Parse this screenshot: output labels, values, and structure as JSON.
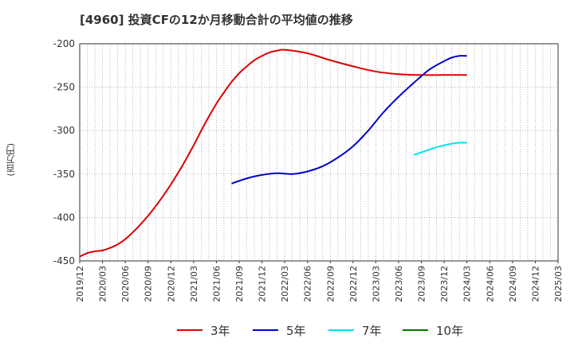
{
  "chart_data": {
    "type": "line",
    "title": "[4960]  投資CFの12か月移動合計の平均値の推移",
    "ylabel": "(百万円)",
    "xlabel": "",
    "x_ticks": [
      "2019/12",
      "2020/03",
      "2020/06",
      "2020/09",
      "2020/12",
      "2021/03",
      "2021/06",
      "2021/09",
      "2021/12",
      "2022/03",
      "2022/06",
      "2022/09",
      "2022/12",
      "2023/03",
      "2023/06",
      "2023/09",
      "2023/12",
      "2024/03",
      "2024/06",
      "2024/09",
      "2024/12",
      "2025/03"
    ],
    "y_ticks": [
      -200,
      -250,
      -300,
      -350,
      -400,
      -450
    ],
    "ylim": [
      -450,
      -200
    ],
    "grid": true,
    "legend_position": "bottom",
    "series": [
      {
        "name": "3年",
        "color": "#dd0000",
        "x": [
          "2019/12",
          "2020/01",
          "2020/02",
          "2020/03",
          "2020/04",
          "2020/05",
          "2020/06",
          "2020/07",
          "2020/08",
          "2020/09",
          "2020/10",
          "2020/11",
          "2020/12",
          "2021/01",
          "2021/02",
          "2021/03",
          "2021/04",
          "2021/05",
          "2021/06",
          "2021/07",
          "2021/08",
          "2021/09",
          "2021/10",
          "2021/11",
          "2021/12",
          "2022/01",
          "2022/02",
          "2022/03",
          "2022/06",
          "2022/09",
          "2022/12",
          "2023/03",
          "2023/06",
          "2023/09",
          "2023/12",
          "2024/03"
        ],
        "values": [
          -445,
          -441,
          -439,
          -438,
          -435,
          -431,
          -425,
          -417,
          -408,
          -398,
          -387,
          -375,
          -362,
          -348,
          -333,
          -317,
          -300,
          -284,
          -269,
          -256,
          -244,
          -234,
          -226,
          -219,
          -214,
          -210,
          -208,
          -207,
          -211,
          -219,
          -226,
          -232,
          -235,
          -236,
          -236,
          -236
        ]
      },
      {
        "name": "5年",
        "color": "#0000cc",
        "x": [
          "2021/08",
          "2021/10",
          "2021/12",
          "2022/02",
          "2022/04",
          "2022/06",
          "2022/08",
          "2022/10",
          "2022/12",
          "2023/02",
          "2023/04",
          "2023/06",
          "2023/08",
          "2023/10",
          "2023/12",
          "2024/01",
          "2024/02",
          "2024/03"
        ],
        "values": [
          -361,
          -355,
          -351,
          -349,
          -350,
          -347,
          -341,
          -331,
          -318,
          -300,
          -279,
          -261,
          -245,
          -230,
          -220,
          -216,
          -214,
          -214
        ]
      },
      {
        "name": "7年",
        "color": "#00e5ee",
        "x": [
          "2023/08",
          "2023/09",
          "2023/10",
          "2023/11",
          "2023/12",
          "2024/01",
          "2024/02",
          "2024/03"
        ],
        "values": [
          -328,
          -325,
          -322,
          -319,
          -317,
          -315,
          -314,
          -314
        ]
      },
      {
        "name": "10年",
        "color": "#007700",
        "x": [],
        "values": []
      }
    ]
  }
}
